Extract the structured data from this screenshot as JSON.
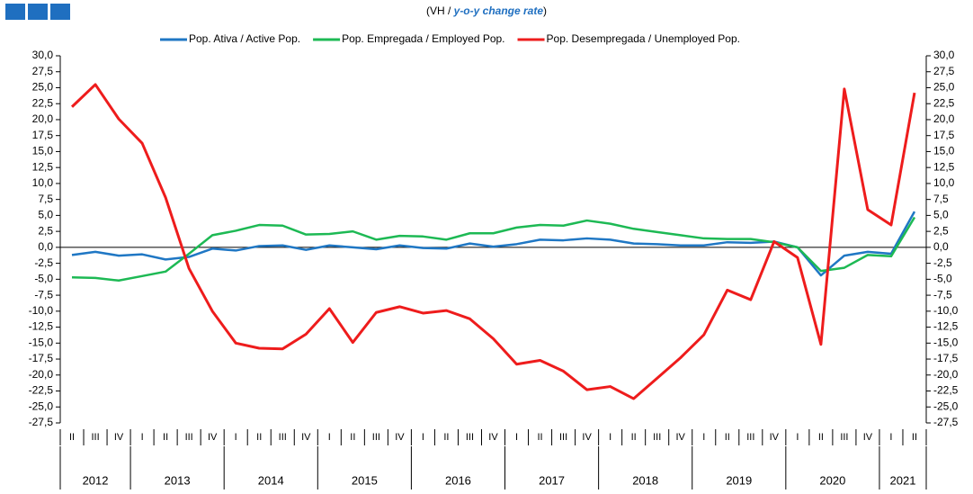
{
  "chart_data": {
    "type": "line",
    "subtitle_prefix": "(VH / ",
    "subtitle_emphasis": "y-o-y change rate",
    "subtitle_suffix": ")",
    "categories": [
      "II",
      "III",
      "IV",
      "I",
      "II",
      "III",
      "IV",
      "I",
      "II",
      "III",
      "IV",
      "I",
      "II",
      "III",
      "IV",
      "I",
      "II",
      "III",
      "IV",
      "I",
      "II",
      "III",
      "IV",
      "I",
      "II",
      "III",
      "IV",
      "I",
      "II",
      "III",
      "IV",
      "I",
      "II",
      "III",
      "IV",
      "I",
      "II"
    ],
    "years": [
      "2012",
      "2013",
      "2014",
      "2015",
      "2016",
      "2017",
      "2018",
      "2019",
      "2020",
      "2021"
    ],
    "series": [
      {
        "name": "Pop. Ativa / Active Pop.",
        "color": "#1f77c4",
        "values": [
          -1.2,
          -0.7,
          -1.3,
          -1.1,
          -1.9,
          -1.5,
          -0.2,
          -0.5,
          0.2,
          0.3,
          -0.4,
          0.3,
          0.0,
          -0.3,
          0.3,
          -0.1,
          -0.2,
          0.6,
          0.1,
          0.5,
          1.2,
          1.1,
          1.4,
          1.2,
          0.6,
          0.5,
          0.3,
          0.3,
          0.8,
          0.7,
          0.9,
          0.0,
          -4.4,
          -1.3,
          -0.7,
          -1.0,
          5.6
        ]
      },
      {
        "name": "Pop. Empregada / Employed Pop.",
        "color": "#1db954",
        "values": [
          -4.7,
          -4.8,
          -5.2,
          -4.5,
          -3.8,
          -1.0,
          1.9,
          2.6,
          3.5,
          3.4,
          2.0,
          2.1,
          2.5,
          1.2,
          1.8,
          1.7,
          1.2,
          2.2,
          2.2,
          3.1,
          3.5,
          3.4,
          4.2,
          3.7,
          2.9,
          2.4,
          1.9,
          1.4,
          1.3,
          1.3,
          0.8,
          0.0,
          -3.7,
          -3.2,
          -1.2,
          -1.4,
          4.7
        ]
      },
      {
        "name": "Pop. Desempregada / Unemployed Pop.",
        "color": "#ee1c1c",
        "values": [
          22,
          25.5,
          20.1,
          16.3,
          7.8,
          -3.3,
          -10,
          -15,
          -15.8,
          -15.9,
          -13.6,
          -9.6,
          -14.9,
          -10.2,
          -9.3,
          -10.3,
          -9.9,
          -11.2,
          -14.3,
          -18.3,
          -17.7,
          -19.4,
          -22.3,
          -21.8,
          -23.7,
          -20.5,
          -17.3,
          -13.7,
          -6.7,
          -8.2,
          0.9,
          -1.6,
          -15.2,
          24.8,
          5.9,
          3.5,
          24.2
        ]
      }
    ],
    "ylim": [
      -27.5,
      30
    ],
    "yticks": [
      {
        "value": 30,
        "label": "30,0"
      },
      {
        "value": 27.5,
        "label": "27,5"
      },
      {
        "value": 25,
        "label": "25,0"
      },
      {
        "value": 22.5,
        "label": "22,5"
      },
      {
        "value": 20,
        "label": "20,0"
      },
      {
        "value": 17.5,
        "label": "17,5"
      },
      {
        "value": 15,
        "label": "15,0"
      },
      {
        "value": 12.5,
        "label": "12,5"
      },
      {
        "value": 10,
        "label": "10,0"
      },
      {
        "value": 7.5,
        "label": "7,5"
      },
      {
        "value": 5,
        "label": "5,0"
      },
      {
        "value": 2.5,
        "label": "2,5"
      },
      {
        "value": 0,
        "label": "0,0"
      },
      {
        "value": -2.5,
        "label": "-2,5"
      },
      {
        "value": -5,
        "label": "-5,0"
      },
      {
        "value": -7.5,
        "label": "-7,5"
      },
      {
        "value": -10,
        "label": "-10,0"
      },
      {
        "value": -12.5,
        "label": "-12,5"
      },
      {
        "value": -15,
        "label": "-15,0"
      },
      {
        "value": -17.5,
        "label": "-17,5"
      },
      {
        "value": -20,
        "label": "-20,0"
      },
      {
        "value": -22.5,
        "label": "-22,5"
      },
      {
        "value": -25,
        "label": "-25,0"
      },
      {
        "value": -27.5,
        "label": "-27,5"
      }
    ],
    "y2lim": [
      -27.5,
      30
    ],
    "y2ticks": [
      {
        "value": 30,
        "label": "30,0"
      },
      {
        "value": 27.5,
        "label": "27,5"
      },
      {
        "value": 25,
        "label": "25,0"
      },
      {
        "value": 22.5,
        "label": "22,5"
      },
      {
        "value": 20,
        "label": "20,0"
      },
      {
        "value": 17.5,
        "label": "17,5"
      },
      {
        "value": 15,
        "label": "15,0"
      },
      {
        "value": 12.5,
        "label": "12,5"
      },
      {
        "value": 10,
        "label": "10,0"
      },
      {
        "value": 7.5,
        "label": "7,5"
      },
      {
        "value": 5,
        "label": "5,0"
      },
      {
        "value": 2.5,
        "label": "2,5"
      },
      {
        "value": 0,
        "label": "0,0"
      },
      {
        "value": -2.5,
        "label": "-2,5"
      },
      {
        "value": -5,
        "label": "-5,0"
      },
      {
        "value": -7.5,
        "label": "-7,5"
      },
      {
        "value": -10,
        "label": "-10,0"
      },
      {
        "value": -12.5,
        "label": "-12,5"
      },
      {
        "value": -15,
        "label": "-15,0"
      },
      {
        "value": -17.5,
        "label": "-17,5"
      },
      {
        "value": -20,
        "label": "-20,0"
      },
      {
        "value": -22.5,
        "label": "-22,5"
      },
      {
        "value": -25,
        "label": "-25,0"
      },
      {
        "value": -27.5,
        "label": "-27,5"
      }
    ],
    "grid": false
  }
}
